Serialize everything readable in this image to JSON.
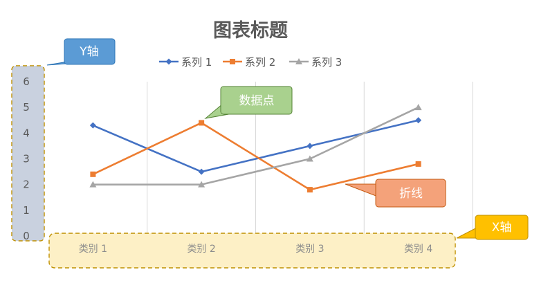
{
  "chart_data": {
    "type": "line",
    "title": "图表标题",
    "categories": [
      "类别 1",
      "类别 2",
      "类别 3",
      "类别 4"
    ],
    "series": [
      {
        "name": "系列 1",
        "values": [
          4.3,
          2.5,
          3.5,
          4.5
        ],
        "color": "#4472c4",
        "marker": "diamond"
      },
      {
        "name": "系列 2",
        "values": [
          2.4,
          4.4,
          1.8,
          2.8
        ],
        "color": "#ed7d31",
        "marker": "square"
      },
      {
        "name": "系列 3",
        "values": [
          2.0,
          2.0,
          3.0,
          5.0
        ],
        "color": "#a5a5a5",
        "marker": "triangle"
      }
    ],
    "ylim": [
      0,
      6
    ],
    "yticks": [
      "0",
      "1",
      "2",
      "3",
      "4",
      "5",
      "6"
    ],
    "grid": "vertical",
    "legend_position": "top"
  },
  "annotations": {
    "y_axis": {
      "label": "Y轴",
      "color": "#5b9bd5"
    },
    "x_axis": {
      "label": "X轴",
      "color": "#ffc000"
    },
    "data_point": {
      "label": "数据点",
      "color": "#a9d18e"
    },
    "line": {
      "label": "折线",
      "color": "#f4a27a"
    }
  }
}
